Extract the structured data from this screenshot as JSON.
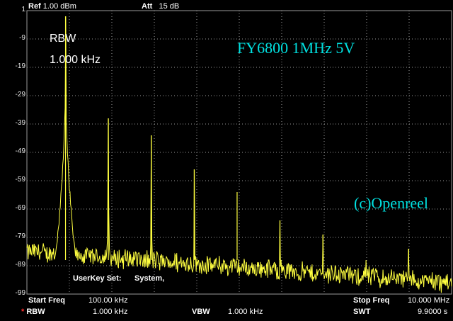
{
  "header": {
    "ref_label": "Ref",
    "ref_value": "1.00 dBm",
    "att_label": "Att",
    "att_value": "15 dB"
  },
  "y_ticks": [
    "1",
    "-9",
    "-19",
    "-29",
    "-39",
    "-49",
    "-59",
    "-69",
    "-79",
    "-89",
    "-99"
  ],
  "overlay": {
    "rbw_title": "RBW",
    "rbw_value": "1.000 kHz"
  },
  "annotations": {
    "title": "FY6800 1MHz 5V",
    "credit": "(c)Openreel"
  },
  "userkey": {
    "label": "UserKey Set:",
    "value": "System,"
  },
  "footer": {
    "start_freq_label": "Start Freq",
    "start_freq_value": "100.00 kHz",
    "stop_freq_label": "Stop Freq",
    "stop_freq_value": "10.000 MHz",
    "rbw_marker": "*",
    "rbw_label": "RBW",
    "rbw_value": "1.000 kHz",
    "vbw_label": "VBW",
    "vbw_value": "1.000 kHz",
    "swt_label": "SWT",
    "swt_value": "9.9000 s"
  },
  "colors": {
    "trace": "#ffff40",
    "grid": "#9a9a9a",
    "annotation": "#00e0e0",
    "background": "#000000"
  },
  "chart_data": {
    "type": "line",
    "x_unit": "MHz",
    "y_unit": "dBm",
    "xlim": [
      0.1,
      10.0
    ],
    "ylim": [
      -99,
      1
    ],
    "grid": true,
    "peaks": [
      {
        "x": 1.0,
        "y": -1
      },
      {
        "x": 2.0,
        "y": -37
      },
      {
        "x": 3.0,
        "y": -43
      },
      {
        "x": 4.0,
        "y": -55
      },
      {
        "x": 5.0,
        "y": -63
      },
      {
        "x": 6.0,
        "y": -73
      },
      {
        "x": 7.0,
        "y": -78
      },
      {
        "x": 8.0,
        "y": -87
      },
      {
        "x": 9.0,
        "y": -83
      }
    ],
    "noise_floor_start": -83,
    "noise_floor_end": -94
  }
}
